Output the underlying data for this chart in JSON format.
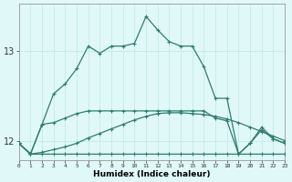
{
  "xlabel": "Humidex (Indice chaleur)",
  "bg_color": "#e0f8f8",
  "grid_color": "#c0e8e8",
  "line_color": "#2e7d6e",
  "x_ticks": [
    0,
    1,
    2,
    3,
    4,
    5,
    6,
    7,
    8,
    9,
    10,
    11,
    12,
    13,
    14,
    15,
    16,
    17,
    18,
    19,
    20,
    21,
    22,
    23
  ],
  "y_ticks": [
    12,
    13
  ],
  "xlim": [
    0,
    23
  ],
  "ylim": [
    11.78,
    13.52
  ],
  "lines": [
    {
      "x": [
        0,
        1,
        2,
        3,
        4,
        5,
        6,
        7,
        8,
        9,
        10,
        11,
        12,
        13,
        14,
        15,
        16,
        17,
        18,
        19,
        20,
        21,
        22,
        23
      ],
      "y": [
        11.97,
        11.85,
        11.85,
        11.85,
        11.85,
        11.85,
        11.85,
        11.85,
        11.85,
        11.85,
        11.85,
        11.85,
        11.85,
        11.85,
        11.85,
        11.85,
        11.85,
        11.85,
        11.85,
        11.85,
        11.85,
        11.85,
        11.85,
        11.85
      ]
    },
    {
      "x": [
        0,
        1,
        2,
        3,
        4,
        5,
        6,
        7,
        8,
        9,
        10,
        11,
        12,
        13,
        14,
        15,
        16,
        17,
        18,
        19,
        20,
        21,
        22,
        23
      ],
      "y": [
        11.97,
        11.85,
        11.87,
        11.9,
        11.93,
        11.97,
        12.03,
        12.08,
        12.13,
        12.18,
        12.23,
        12.27,
        12.3,
        12.31,
        12.31,
        12.3,
        12.29,
        12.27,
        12.24,
        12.2,
        12.15,
        12.1,
        12.05,
        12.0
      ]
    },
    {
      "x": [
        0,
        1,
        2,
        3,
        4,
        5,
        6,
        7,
        8,
        9,
        10,
        11,
        12,
        13,
        14,
        15,
        16,
        17,
        18,
        19,
        20,
        21,
        22,
        23
      ],
      "y": [
        11.97,
        11.85,
        12.18,
        12.2,
        12.25,
        12.3,
        12.33,
        12.33,
        12.33,
        12.33,
        12.33,
        12.33,
        12.33,
        12.33,
        12.33,
        12.33,
        12.33,
        12.25,
        12.22,
        11.85,
        11.97,
        12.12,
        12.02,
        11.97
      ]
    },
    {
      "x": [
        0,
        1,
        2,
        3,
        4,
        5,
        6,
        7,
        8,
        9,
        10,
        11,
        12,
        13,
        14,
        15,
        16,
        17,
        18,
        19,
        20,
        21,
        22,
        23
      ],
      "y": [
        11.97,
        11.85,
        12.18,
        12.52,
        12.63,
        12.8,
        13.05,
        12.97,
        13.05,
        13.05,
        13.08,
        13.38,
        13.23,
        13.1,
        13.05,
        13.05,
        12.82,
        12.47,
        12.47,
        11.85,
        11.97,
        12.15,
        12.02,
        11.97
      ]
    }
  ]
}
